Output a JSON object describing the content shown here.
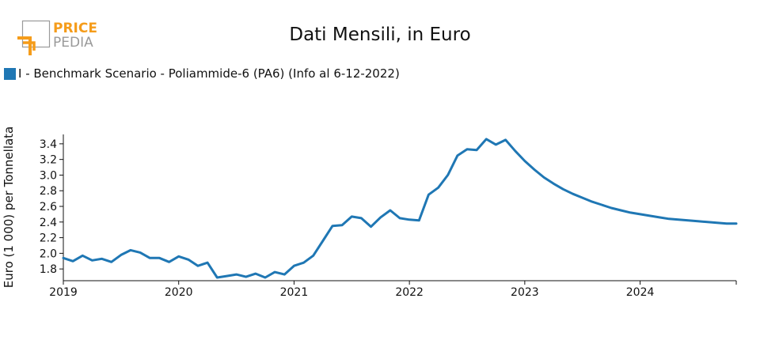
{
  "logo": {
    "line1": "PRICE",
    "line2": "PEDIA"
  },
  "colors": {
    "series": "#1f77b4",
    "logo_orange": "#f59c1a",
    "logo_gray": "#9a9a9a"
  },
  "chart_data": {
    "type": "line",
    "title": "Dati Mensili, in Euro",
    "ylabel": "Euro (1 000) per Tonnellata",
    "xlabel": "",
    "ylim": [
      1.65,
      3.52
    ],
    "yticks": [
      1.8,
      2.0,
      2.2,
      2.4,
      2.6,
      2.8,
      3.0,
      3.2,
      3.4
    ],
    "ytick_labels": [
      "1.8",
      "2.0",
      "2.2",
      "2.4",
      "2.6",
      "2.8",
      "3.0",
      "3.2",
      "3.4"
    ],
    "xlim": [
      "2019-01",
      "2024-11"
    ],
    "xticks": [
      "2019-01",
      "2020-01",
      "2021-01",
      "2022-01",
      "2023-01",
      "2024-01"
    ],
    "xtick_labels": [
      "2019",
      "2020",
      "2021",
      "2022",
      "2023",
      "2024"
    ],
    "grid": false,
    "legend_position": "top-left",
    "series": [
      {
        "name": "I - Benchmark Scenario - Poliammide-6 (PA6) (Info al 6-12-2022)",
        "color": "#1f77b4",
        "x": [
          "2019-01",
          "2019-02",
          "2019-03",
          "2019-04",
          "2019-05",
          "2019-06",
          "2019-07",
          "2019-08",
          "2019-09",
          "2019-10",
          "2019-11",
          "2019-12",
          "2020-01",
          "2020-02",
          "2020-03",
          "2020-04",
          "2020-05",
          "2020-06",
          "2020-07",
          "2020-08",
          "2020-09",
          "2020-10",
          "2020-11",
          "2020-12",
          "2021-01",
          "2021-02",
          "2021-03",
          "2021-04",
          "2021-05",
          "2021-06",
          "2021-07",
          "2021-08",
          "2021-09",
          "2021-10",
          "2021-11",
          "2021-12",
          "2022-01",
          "2022-02",
          "2022-03",
          "2022-04",
          "2022-05",
          "2022-06",
          "2022-07",
          "2022-08",
          "2022-09",
          "2022-10",
          "2022-11",
          "2022-12",
          "2023-01",
          "2023-02",
          "2023-03",
          "2023-04",
          "2023-05",
          "2023-06",
          "2023-07",
          "2023-08",
          "2023-09",
          "2023-10",
          "2023-11",
          "2023-12",
          "2024-01",
          "2024-02",
          "2024-03",
          "2024-04",
          "2024-05",
          "2024-06",
          "2024-07",
          "2024-08",
          "2024-09",
          "2024-10",
          "2024-11"
        ],
        "values": [
          1.94,
          1.9,
          1.97,
          1.91,
          1.93,
          1.89,
          1.98,
          2.04,
          2.01,
          1.94,
          1.94,
          1.89,
          1.96,
          1.92,
          1.84,
          1.88,
          1.69,
          1.71,
          1.73,
          1.7,
          1.74,
          1.69,
          1.76,
          1.73,
          1.84,
          1.88,
          1.97,
          2.16,
          2.35,
          2.36,
          2.47,
          2.45,
          2.34,
          2.46,
          2.55,
          2.45,
          2.43,
          2.42,
          2.75,
          2.84,
          3.0,
          3.25,
          3.33,
          3.32,
          3.46,
          3.39,
          3.45,
          3.31,
          3.18,
          3.07,
          2.97,
          2.89,
          2.82,
          2.76,
          2.71,
          2.66,
          2.62,
          2.58,
          2.55,
          2.52,
          2.5,
          2.48,
          2.46,
          2.44,
          2.43,
          2.42,
          2.41,
          2.4,
          2.39,
          2.38,
          2.38
        ]
      }
    ]
  }
}
